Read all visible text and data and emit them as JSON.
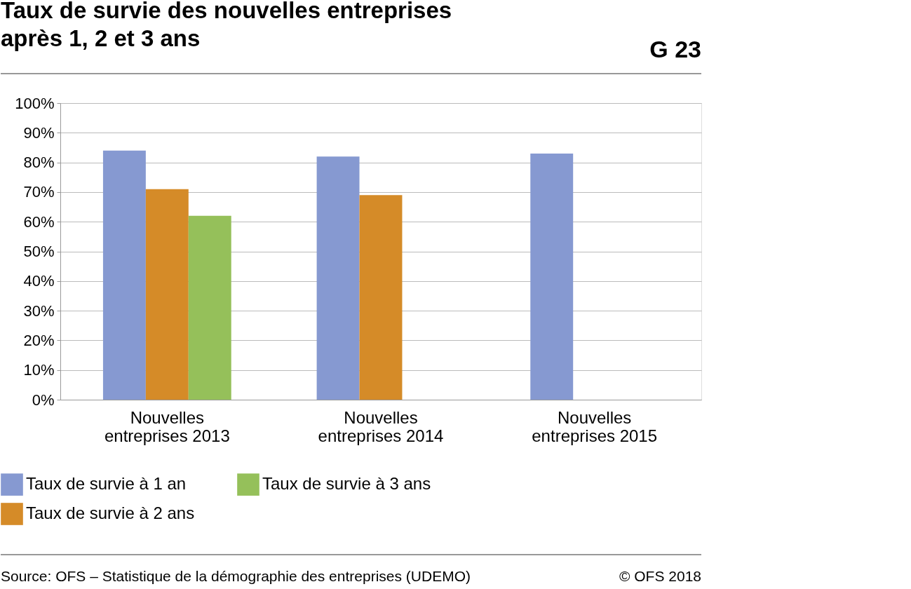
{
  "chart_data": {
    "type": "bar",
    "title": "Taux de survie des nouvelles entreprises après 1, 2 et 3 ans",
    "categories": [
      "Nouvelles entreprises 2013",
      "Nouvelles entreprises 2014",
      "Nouvelles entreprises 2015"
    ],
    "series": [
      {
        "name": "Taux de survie à 1 an",
        "color": "#8699d1",
        "values": [
          84,
          82,
          83
        ]
      },
      {
        "name": "Taux de survie à 2 ans",
        "color": "#d58b28",
        "values": [
          71,
          69,
          null
        ]
      },
      {
        "name": "Taux de survie à 3 ans",
        "color": "#95c05a",
        "values": [
          62,
          null,
          null
        ]
      }
    ],
    "ylim": [
      0,
      100
    ],
    "yticks": [
      {
        "value": 0,
        "label": "0%"
      },
      {
        "value": 10,
        "label": "10%"
      },
      {
        "value": 20,
        "label": "20%"
      },
      {
        "value": 30,
        "label": "30%"
      },
      {
        "value": 40,
        "label": "40%"
      },
      {
        "value": 50,
        "label": "50%"
      },
      {
        "value": 60,
        "label": "60%"
      },
      {
        "value": 70,
        "label": "70%"
      },
      {
        "value": 80,
        "label": "80%"
      },
      {
        "value": 90,
        "label": "90%"
      },
      {
        "value": 100,
        "label": "100%"
      }
    ],
    "grid": "y",
    "legend": "bottom",
    "annotations": [
      "G 23",
      "Source: OFS – Statistique de la démographie des entreprises (UDEMO)",
      "© OFS 2018"
    ]
  }
}
